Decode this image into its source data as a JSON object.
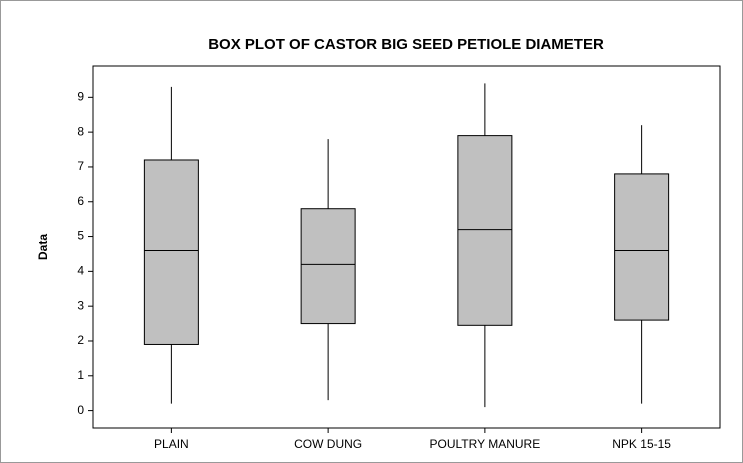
{
  "chart_data": {
    "type": "box",
    "title": "BOX PLOT OF CASTOR BIG SEED PETIOLE DIAMETER",
    "y_label": "Data",
    "categories": [
      "PLAIN",
      "COW DUNG",
      "POULTRY MANURE",
      "NPK 15-15"
    ],
    "boxes": [
      {
        "min": 0.2,
        "q1": 1.9,
        "median": 4.6,
        "q3": 7.2,
        "max": 9.3
      },
      {
        "min": 0.3,
        "q1": 2.5,
        "median": 4.2,
        "q3": 5.8,
        "max": 7.8
      },
      {
        "min": 0.1,
        "q1": 2.45,
        "median": 5.2,
        "q3": 7.9,
        "max": 9.4
      },
      {
        "min": 0.2,
        "q1": 2.6,
        "median": 4.6,
        "q3": 6.8,
        "max": 8.2
      }
    ],
    "color": "#c0c0c0",
    "ylim": [
      -0.5,
      9.9
    ],
    "yticks": [
      0,
      1,
      2,
      3,
      4,
      5,
      6,
      7,
      8,
      9
    ],
    "grid": false
  }
}
